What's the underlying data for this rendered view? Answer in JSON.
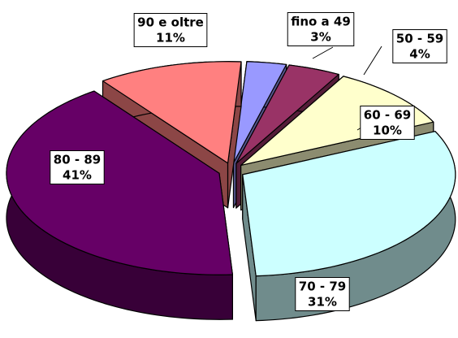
{
  "chart_data": {
    "type": "pie",
    "categories": [
      "fino a 49",
      "50 - 59",
      "60 - 69",
      "70 - 79",
      "80 - 89",
      "90 e oltre"
    ],
    "values": [
      3,
      4,
      10,
      31,
      41,
      11
    ],
    "value_labels": [
      "3%",
      "4%",
      "10%",
      "31%",
      "41%",
      "11%"
    ],
    "colors": [
      "#9999ff",
      "#993366",
      "#ffffcc",
      "#ccffff",
      "#660066",
      "#ff8080"
    ]
  }
}
